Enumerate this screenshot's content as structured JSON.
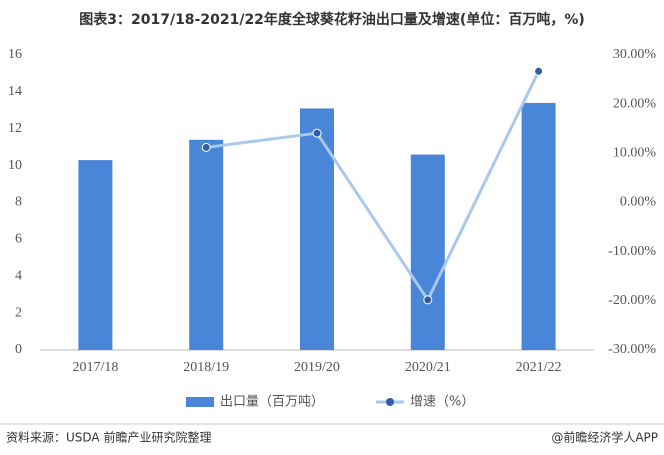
{
  "chart_data": {
    "type": "bar_line",
    "title": "图表3：2017/18-2021/22年度全球葵花籽油出口量及增速(单位：百万吨，%)",
    "categories": [
      "2017/18",
      "2018/19",
      "2019/20",
      "2020/21",
      "2021/22"
    ],
    "series": [
      {
        "name": "出口量（百万吨）",
        "type": "bar",
        "color": "#4a86d8",
        "values": [
          10.3,
          11.4,
          13.1,
          10.6,
          13.4
        ]
      },
      {
        "name": "增速（%）",
        "type": "line",
        "axis": "y2",
        "color": "#a9c8ef",
        "marker_color": "#2e5fa8",
        "values": [
          null,
          11.2,
          14.1,
          -19.8,
          26.7
        ]
      }
    ],
    "ylim": [
      0,
      16
    ],
    "yticks": [
      0,
      2,
      4,
      6,
      8,
      10,
      12,
      14,
      16
    ],
    "y2lim": [
      -30,
      30
    ],
    "y2ticks": [
      {
        "value": -30,
        "label": "-30.00%"
      },
      {
        "value": -20,
        "label": "-20.00%"
      },
      {
        "value": -10,
        "label": "-10.00%"
      },
      {
        "value": 0,
        "label": "0.00%"
      },
      {
        "value": 10,
        "label": "10.00%"
      },
      {
        "value": 20,
        "label": "20.00%"
      },
      {
        "value": 30,
        "label": "30.00%"
      }
    ],
    "source": "资料来源：USDA 前瞻产业研究院整理",
    "credit": "@前瞻经济学人APP"
  }
}
